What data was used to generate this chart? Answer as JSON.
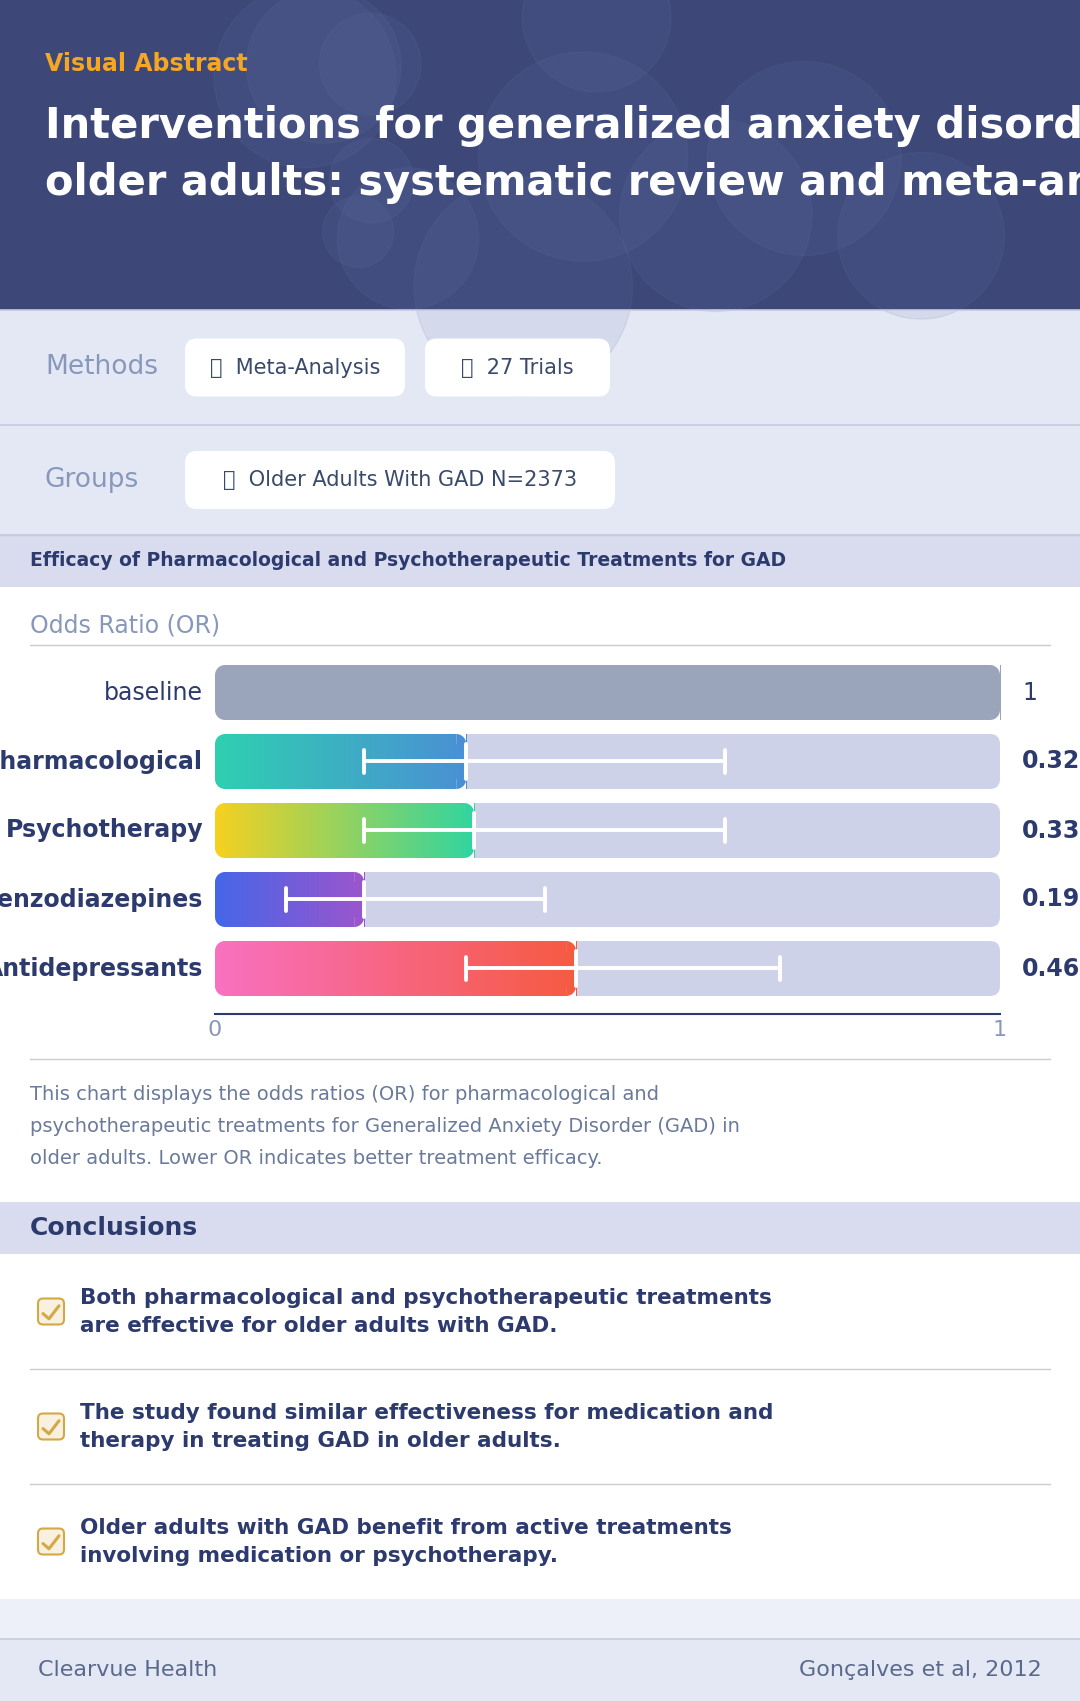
{
  "title": "Interventions for generalized anxiety disorder in\nolder adults: systematic review and meta-analysis",
  "visual_abstract_label": "Visual Abstract",
  "header_bg": "#3d4878",
  "header_title_color": "#ffffff",
  "visual_abstract_color": "#f5a623",
  "methods_label": "Methods",
  "methods_tags": [
    "🔬  Meta-Analysis",
    "📄  27 Trials"
  ],
  "groups_label": "Groups",
  "groups_tag": "👤  Older Adults With GAD N=2373",
  "section_bg": "#e4e8f5",
  "chart_section_label": "Efficacy of Pharmacological and Psychotherapeutic Treatments for GAD",
  "chart_section_bg": "#d8dcee",
  "chart_ylabel": "Odds Ratio (OR)",
  "chart_rows": [
    {
      "label": "baseline",
      "value": 1.0,
      "ci_low": null,
      "ci_high": null,
      "color_start": "#9aa5bb",
      "color_end": "#9aa5bb",
      "bold": false,
      "value_label": "1"
    },
    {
      "label": "Pharmacological",
      "value": 0.32,
      "ci_low": 0.19,
      "ci_high": 0.65,
      "color_start": "#2ecfb0",
      "color_end": "#4a8fd4",
      "bold": true,
      "value_label": "0.32"
    },
    {
      "label": "Psychotherapy",
      "value": 0.33,
      "ci_low": 0.19,
      "ci_high": 0.65,
      "color_start": "#f5d020",
      "color_end": "#30d4a0",
      "bold": true,
      "value_label": "0.33"
    },
    {
      "label": "Benzodiazepines",
      "value": 0.19,
      "ci_low": 0.09,
      "ci_high": 0.42,
      "color_start": "#4466e8",
      "color_end": "#9b55cc",
      "bold": true,
      "value_label": "0.19"
    },
    {
      "label": "Antidepressants",
      "value": 0.46,
      "ci_low": 0.32,
      "ci_high": 0.72,
      "color_start": "#f870c0",
      "color_end": "#f55a40",
      "bold": true,
      "value_label": "0.46"
    }
  ],
  "chart_note": "This chart displays the odds ratios (OR) for pharmacological and\npsychotherapeutic treatments for Generalized Anxiety Disorder (GAD) in\nolder adults. Lower OR indicates better treatment efficacy.",
  "conclusions_label": "Conclusions",
  "conclusions_bg": "#d8dcee",
  "conclusions": [
    "Both pharmacological and psychotherapeutic treatments\nare effective for older adults with GAD.",
    "The study found similar effectiveness for medication and\ntherapy in treating GAD in older adults.",
    "Older adults with GAD benefit from active treatments\ninvolving medication or psychotherapy."
  ],
  "footer_left": "Clearvue Health",
  "footer_right": "Gonçalves et al, 2012",
  "footer_bg": "#e4e8f5",
  "footer_text_color": "#5a6a8a",
  "chart_bar_bg": "#cdd2e8",
  "label_color": "#2d3a6e",
  "note_color": "#6a7a9a",
  "checkbox_color": "#d4a843",
  "white_bg": "#ffffff"
}
